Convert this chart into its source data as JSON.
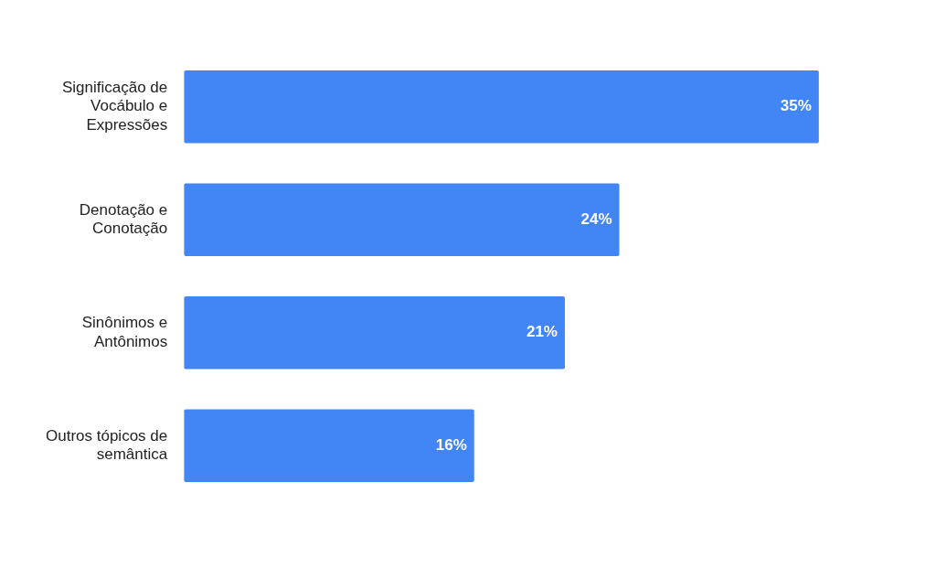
{
  "chart_data": {
    "type": "bar",
    "orientation": "horizontal",
    "categories": [
      "Significação de Vocábulo e Expressões",
      "Denotação e Conotação",
      "Sinônimos e Antônimos",
      "Outros tópicos de semântica"
    ],
    "values": [
      35,
      24,
      21,
      16
    ],
    "color": "#4285f4",
    "value_labels": [
      "35%",
      "24%",
      "21%",
      "16%"
    ]
  }
}
